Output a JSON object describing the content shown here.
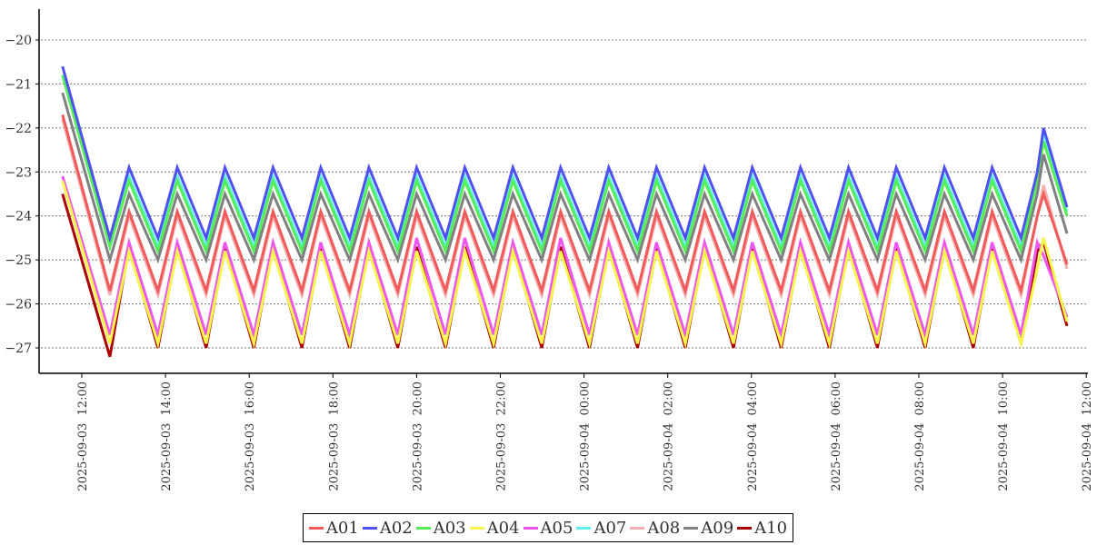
{
  "chart_data": {
    "type": "line",
    "title": "",
    "xlabel": "",
    "ylabel": "",
    "x_unit": "hours since 2025-09-03 00:00",
    "xlim": [
      11.54,
      36.0
    ],
    "ylim": [
      -27.6,
      -19.3
    ],
    "grid": "horizontal dashed",
    "legend_position": "bottom-center",
    "y_ticks": [
      -20,
      -21,
      -22,
      -23,
      -24,
      -25,
      -26,
      -27
    ],
    "y_tick_labels": [
      "−20",
      "−21",
      "−22",
      "−23",
      "−24",
      "−25",
      "−26",
      "−27"
    ],
    "x_ticks": [
      12,
      14,
      16,
      18,
      20,
      22,
      24,
      26,
      28,
      30,
      32,
      34,
      36
    ],
    "x_tick_labels": [
      "2025-09-03  12:00",
      "2025-09-03  14:00",
      "2025-09-03  16:00",
      "2025-09-03  18:00",
      "2025-09-03  20:00",
      "2025-09-03  22:00",
      "2025-09-04  00:00",
      "2025-09-04  02:00",
      "2025-09-04  04:00",
      "2025-09-04  06:00",
      "2025-09-04  08:00",
      "2025-09-04  10:00",
      "2025-09-04  12:00"
    ],
    "x": [
      11.54,
      12.67,
      13.13,
      13.82,
      14.28,
      14.97,
      15.42,
      16.11,
      16.57,
      17.26,
      17.71,
      18.4,
      18.86,
      19.55,
      20.0,
      20.69,
      21.15,
      21.84,
      22.3,
      22.99,
      23.44,
      24.13,
      24.59,
      25.28,
      25.73,
      26.42,
      26.88,
      27.57,
      28.02,
      28.71,
      29.17,
      29.86,
      30.32,
      31.01,
      31.46,
      32.15,
      32.61,
      33.3,
      33.75,
      34.44,
      34.83,
      34.98,
      35.54
    ],
    "series": [
      {
        "name": "A08",
        "color": "#f4b0b0",
        "values": [
          -21.8,
          -25.8,
          -24.0,
          -25.8,
          -24.0,
          -25.8,
          -24.0,
          -25.8,
          -24.0,
          -25.8,
          -24.0,
          -25.8,
          -24.0,
          -25.8,
          -24.0,
          -25.8,
          -24.0,
          -25.8,
          -24.0,
          -25.8,
          -24.0,
          -25.8,
          -24.0,
          -25.8,
          -24.0,
          -25.8,
          -24.0,
          -25.8,
          -24.0,
          -25.8,
          -24.0,
          -25.8,
          -24.0,
          -25.8,
          -24.0,
          -25.8,
          -24.0,
          -25.8,
          -24.0,
          -25.8,
          -24.0,
          -23.3,
          -25.2
        ]
      },
      {
        "name": "A01",
        "color": "#f05a5a",
        "values": [
          -21.7,
          -25.7,
          -23.9,
          -25.7,
          -23.9,
          -25.7,
          -23.9,
          -25.7,
          -23.9,
          -25.7,
          -23.9,
          -25.7,
          -23.9,
          -25.7,
          -23.9,
          -25.7,
          -23.9,
          -25.7,
          -23.9,
          -25.7,
          -23.9,
          -25.7,
          -23.9,
          -25.7,
          -23.9,
          -25.7,
          -23.9,
          -25.7,
          -23.9,
          -25.7,
          -23.9,
          -25.7,
          -23.9,
          -25.7,
          -23.9,
          -25.7,
          -23.9,
          -25.7,
          -23.9,
          -25.7,
          -24.0,
          -23.5,
          -25.1
        ]
      },
      {
        "name": "A07",
        "color": "#5ef0f0",
        "values": [
          -20.8,
          -24.7,
          -23.1,
          -24.7,
          -23.1,
          -24.7,
          -23.1,
          -24.7,
          -23.1,
          -24.7,
          -23.1,
          -24.7,
          -23.1,
          -24.7,
          -23.1,
          -24.7,
          -23.1,
          -24.7,
          -23.1,
          -24.7,
          -23.1,
          -24.7,
          -23.1,
          -24.7,
          -23.1,
          -24.7,
          -23.1,
          -24.7,
          -23.1,
          -24.7,
          -23.1,
          -24.7,
          -23.1,
          -24.7,
          -23.1,
          -24.7,
          -23.1,
          -24.7,
          -23.1,
          -24.7,
          -23.2,
          -22.1,
          -23.9
        ]
      },
      {
        "name": "A03",
        "color": "#55ee55",
        "values": [
          -20.8,
          -24.7,
          -23.2,
          -24.8,
          -23.2,
          -24.8,
          -23.2,
          -24.8,
          -23.2,
          -24.8,
          -23.2,
          -24.8,
          -23.2,
          -24.8,
          -23.2,
          -24.8,
          -23.2,
          -24.8,
          -23.2,
          -24.8,
          -23.2,
          -24.8,
          -23.2,
          -24.8,
          -23.2,
          -24.8,
          -23.2,
          -24.8,
          -23.2,
          -24.8,
          -23.2,
          -24.8,
          -23.2,
          -24.8,
          -23.2,
          -24.8,
          -23.2,
          -24.8,
          -23.2,
          -24.8,
          -23.2,
          -22.3,
          -24.0
        ]
      },
      {
        "name": "A09",
        "color": "#808080",
        "values": [
          -21.2,
          -25.0,
          -23.5,
          -25.0,
          -23.5,
          -25.0,
          -23.5,
          -25.0,
          -23.5,
          -25.0,
          -23.5,
          -25.0,
          -23.5,
          -25.0,
          -23.5,
          -25.0,
          -23.5,
          -25.0,
          -23.5,
          -25.0,
          -23.5,
          -25.0,
          -23.5,
          -25.0,
          -23.5,
          -25.0,
          -23.5,
          -25.0,
          -23.5,
          -25.0,
          -23.5,
          -25.0,
          -23.5,
          -25.0,
          -23.5,
          -25.0,
          -23.5,
          -25.0,
          -23.5,
          -25.0,
          -23.5,
          -22.6,
          -24.4
        ]
      },
      {
        "name": "A02",
        "color": "#5050f0",
        "values": [
          -20.6,
          -24.5,
          -22.9,
          -24.5,
          -22.9,
          -24.5,
          -22.9,
          -24.5,
          -22.9,
          -24.5,
          -22.9,
          -24.5,
          -22.9,
          -24.5,
          -22.9,
          -24.5,
          -22.9,
          -24.5,
          -22.9,
          -24.5,
          -22.9,
          -24.5,
          -22.9,
          -24.5,
          -22.9,
          -24.5,
          -22.9,
          -24.5,
          -22.9,
          -24.5,
          -22.9,
          -24.5,
          -22.9,
          -24.5,
          -22.9,
          -24.5,
          -22.9,
          -24.5,
          -22.9,
          -24.5,
          -23.0,
          -22.0,
          -23.8
        ]
      },
      {
        "name": "A10",
        "color": "#aa0000",
        "values": [
          -23.5,
          -27.2,
          -24.7,
          -27.0,
          -24.7,
          -27.0,
          -24.7,
          -27.0,
          -24.7,
          -27.0,
          -24.7,
          -27.0,
          -24.7,
          -27.0,
          -24.7,
          -27.0,
          -24.7,
          -27.0,
          -24.7,
          -27.0,
          -24.7,
          -27.0,
          -24.7,
          -27.0,
          -24.7,
          -27.0,
          -24.7,
          -27.0,
          -24.7,
          -27.0,
          -24.7,
          -27.0,
          -24.7,
          -27.0,
          -24.7,
          -27.0,
          -24.7,
          -27.0,
          -24.7,
          -26.9,
          -24.8,
          -24.6,
          -26.5
        ]
      },
      {
        "name": "A05",
        "color": "#ee55ee",
        "values": [
          -23.1,
          -26.7,
          -24.6,
          -26.7,
          -24.6,
          -26.7,
          -24.6,
          -26.7,
          -24.6,
          -26.7,
          -24.6,
          -26.7,
          -24.6,
          -26.7,
          -24.5,
          -26.7,
          -24.5,
          -26.7,
          -24.6,
          -26.7,
          -24.5,
          -26.7,
          -24.6,
          -26.7,
          -24.6,
          -26.7,
          -24.6,
          -26.7,
          -24.6,
          -26.7,
          -24.6,
          -26.7,
          -24.6,
          -26.7,
          -24.6,
          -26.7,
          -24.6,
          -26.7,
          -24.6,
          -26.7,
          -24.6,
          -24.9,
          -26.3
        ]
      },
      {
        "name": "A04",
        "color": "#f5f54a",
        "values": [
          -23.2,
          -26.9,
          -24.8,
          -26.9,
          -24.8,
          -26.9,
          -24.8,
          -26.9,
          -24.8,
          -26.9,
          -24.8,
          -26.9,
          -24.8,
          -26.9,
          -24.8,
          -26.9,
          -24.8,
          -26.9,
          -24.8,
          -26.9,
          -24.8,
          -26.9,
          -24.8,
          -26.9,
          -24.8,
          -26.9,
          -24.8,
          -26.9,
          -24.8,
          -26.9,
          -24.8,
          -26.9,
          -24.8,
          -26.9,
          -24.8,
          -26.9,
          -24.8,
          -26.9,
          -24.8,
          -26.9,
          -25.2,
          -24.5,
          -26.4
        ]
      }
    ],
    "legend": [
      {
        "name": "A01",
        "color": "#f05a5a"
      },
      {
        "name": "A02",
        "color": "#5050f0"
      },
      {
        "name": "A03",
        "color": "#55ee55"
      },
      {
        "name": "A04",
        "color": "#f5f54a"
      },
      {
        "name": "A05",
        "color": "#ee55ee"
      },
      {
        "name": "A07",
        "color": "#5ef0f0"
      },
      {
        "name": "A08",
        "color": "#f4b0b0"
      },
      {
        "name": "A09",
        "color": "#808080"
      },
      {
        "name": "A10",
        "color": "#aa0000"
      }
    ]
  }
}
